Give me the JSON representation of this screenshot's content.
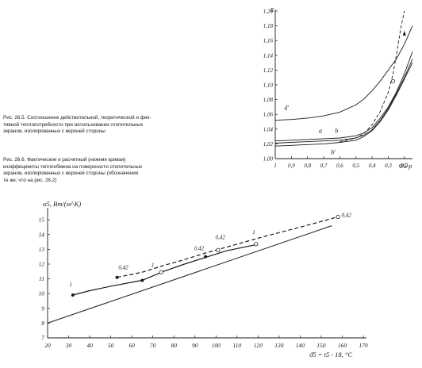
{
  "captions": {
    "fig1": [
      "Рис. 26.5. Соотношение действительной, теоретической и фик-",
      "тивной теплопотребности при использовании отопительных",
      "экранов, изолированных с верхней стороны"
    ],
    "fig2": [
      "Рис. 26.6. Фактические и расчетный (нижняя кривая)",
      "коэффициенты теплообмена на поверхности отопительных",
      "экранов, изолированных с верхней стороны (обозначения",
      "те же; что на рис. 26.2)"
    ]
  },
  "chart_data": [
    {
      "type": "line",
      "title": "",
      "ylabel": "ε",
      "xlabel": "Φ5-р",
      "x_ticks": [
        "1",
        "0,9",
        "0,8",
        "0,7",
        "0,6",
        "0,5",
        "0,4",
        "0,3",
        "0,2"
      ],
      "x_reversed": true,
      "xlim": [
        1.0,
        0.15
      ],
      "y_ticks": [
        "1,00",
        "1,02",
        "1,04",
        "1,06",
        "1,08",
        "1,10",
        "1,12",
        "1,14",
        "1,16",
        "1,18",
        "1,20"
      ],
      "ylim": [
        1.0,
        1.2
      ],
      "grid": false,
      "series": [
        {
          "name": "d'",
          "style": "solid",
          "x": [
            1.0,
            0.9,
            0.8,
            0.7,
            0.6,
            0.5,
            0.45,
            0.4,
            0.35,
            0.3,
            0.25,
            0.2,
            0.15
          ],
          "y": [
            1.052,
            1.053,
            1.055,
            1.058,
            1.063,
            1.073,
            1.081,
            1.092,
            1.105,
            1.12,
            1.135,
            1.155,
            1.18
          ]
        },
        {
          "name": "a",
          "style": "solid",
          "x": [
            1.0,
            0.9,
            0.8,
            0.7,
            0.6,
            0.5,
            0.45,
            0.4,
            0.35,
            0.3,
            0.25,
            0.2,
            0.15
          ],
          "y": [
            1.024,
            1.025,
            1.026,
            1.027,
            1.028,
            1.031,
            1.035,
            1.042,
            1.055,
            1.07,
            1.09,
            1.115,
            1.145
          ]
        },
        {
          "name": "b",
          "style": "solid",
          "x": [
            1.0,
            0.9,
            0.8,
            0.7,
            0.6,
            0.5,
            0.45,
            0.4,
            0.35,
            0.3,
            0.25,
            0.2,
            0.15
          ],
          "y": [
            1.021,
            1.022,
            1.023,
            1.024,
            1.025,
            1.028,
            1.032,
            1.039,
            1.052,
            1.068,
            1.088,
            1.11,
            1.135
          ]
        },
        {
          "name": "b'",
          "style": "solid",
          "x": [
            1.0,
            0.9,
            0.8,
            0.7,
            0.6,
            0.5,
            0.45,
            0.4,
            0.35,
            0.3,
            0.25,
            0.2,
            0.15
          ],
          "y": [
            1.017,
            1.018,
            1.019,
            1.02,
            1.022,
            1.025,
            1.03,
            1.038,
            1.05,
            1.066,
            1.086,
            1.108,
            1.13
          ]
        },
        {
          "name": "",
          "style": "dashed",
          "x": [
            0.6,
            0.5,
            0.45,
            0.4,
            0.35,
            0.3,
            0.27,
            0.25,
            0.22,
            0.2
          ],
          "y": [
            1.023,
            1.028,
            1.034,
            1.046,
            1.064,
            1.09,
            1.115,
            1.14,
            1.18,
            1.2
          ]
        }
      ],
      "markers": [
        {
          "x": 0.2,
          "y": 1.168,
          "shape": "arrow"
        },
        {
          "x": 0.27,
          "y": 1.105,
          "shape": "open-circle"
        }
      ],
      "annotations": [
        {
          "text": "d'",
          "x": 0.93,
          "y": 1.066
        },
        {
          "text": "a",
          "x": 0.72,
          "y": 1.035
        },
        {
          "text": "b",
          "x": 0.62,
          "y": 1.035
        },
        {
          "text": "b'",
          "x": 0.64,
          "y": 1.006
        }
      ]
    },
    {
      "type": "line",
      "title": "",
      "ylabel": "α5, Вт/(м²·К)",
      "xlabel": "ϑ5 = t5 - 18, °C",
      "x_ticks": [
        "20",
        "30",
        "40",
        "50",
        "60",
        "70",
        "80",
        "90",
        "100",
        "110",
        "120",
        "130",
        "140",
        "150",
        "160",
        "170"
      ],
      "xlim": [
        20,
        170
      ],
      "y_ticks": [
        "7",
        "8",
        "9",
        "10",
        "11",
        "12",
        "13",
        "14",
        "15"
      ],
      "ylim": [
        7,
        15.6
      ],
      "grid": false,
      "series": [
        {
          "name": "",
          "style": "solid",
          "role": "calculated",
          "x": [
            20,
            155
          ],
          "y": [
            8.0,
            14.6
          ]
        },
        {
          "name": "1",
          "style": "solid",
          "x": [
            32,
            40,
            50,
            65,
            75,
            85,
            95,
            105,
            120
          ],
          "y": [
            9.9,
            10.2,
            10.5,
            10.9,
            11.5,
            12.0,
            12.45,
            12.9,
            13.35
          ]
        },
        {
          "name": "0,42",
          "style": "dashed",
          "x": [
            53,
            65,
            75,
            85,
            95,
            105,
            115,
            125,
            140,
            158
          ],
          "y": [
            11.1,
            11.45,
            11.9,
            12.3,
            12.75,
            13.15,
            13.55,
            13.95,
            14.5,
            15.2
          ]
        }
      ],
      "markers": [
        {
          "x": 32,
          "y": 9.9,
          "shape": "filled-circle"
        },
        {
          "x": 53,
          "y": 11.1,
          "shape": "filled-circle"
        },
        {
          "x": 65,
          "y": 10.9,
          "shape": "filled-circle"
        },
        {
          "x": 74,
          "y": 11.45,
          "shape": "open-circle"
        },
        {
          "x": 95,
          "y": 12.5,
          "shape": "filled-circle"
        },
        {
          "x": 101,
          "y": 12.95,
          "shape": "open-circle"
        },
        {
          "x": 119,
          "y": 13.35,
          "shape": "open-circle"
        },
        {
          "x": 158,
          "y": 15.2,
          "shape": "open-circle"
        }
      ],
      "annotations": [
        {
          "text": "1",
          "x": 31,
          "y": 10.5
        },
        {
          "text": "0,42",
          "x": 56,
          "y": 11.65
        },
        {
          "text": "1",
          "x": 70,
          "y": 11.8
        },
        {
          "text": "0,42",
          "x": 92,
          "y": 12.95
        },
        {
          "text": "0,42",
          "x": 102,
          "y": 13.7
        },
        {
          "text": "1",
          "x": 118,
          "y": 14.05
        },
        {
          "text": "0,42",
          "x": 162,
          "y": 15.2
        }
      ]
    }
  ]
}
